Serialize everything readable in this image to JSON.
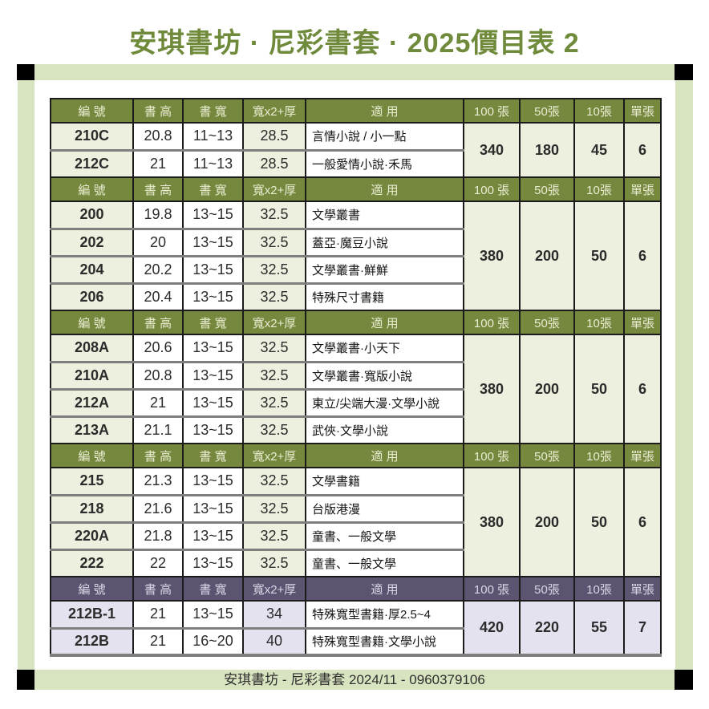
{
  "title": "安琪書坊 · 尼彩書套 · 2025價目表 2",
  "footer": "安琪書坊 - 尼彩書套 2024/11 - 0960379106",
  "columns": [
    "編 號",
    "書 高",
    "書 寬",
    "寬x2+厚",
    "適 用",
    "100 張",
    "50張",
    "10張",
    "單張"
  ],
  "colors": {
    "title_green": "#6e8a3a",
    "olive": "#75883d",
    "olive_text": "#e9ecd2",
    "purple": "#5d5471",
    "purple_text": "#d9d5e4",
    "tint_green": "#edf0de",
    "tint_purple": "#e5e2ef",
    "frame_green": "#d8e3c0",
    "line_black": "#1b1b1b",
    "line_gray": "#7f7f7f",
    "price_red": "#ec0000",
    "price_blue": "#1873c8",
    "price_black": "#0d0d0d"
  },
  "sections": [
    {
      "theme": "olive",
      "rows": [
        {
          "code": "210C",
          "height": "20.8",
          "width": "11~13",
          "w2t": "28.5",
          "use": "言情小說 / 小一點"
        },
        {
          "code": "212C",
          "height": "21",
          "width": "11~13",
          "w2t": "28.5",
          "use": "一般愛情小說·禾馬"
        }
      ],
      "prices": {
        "p100": "340",
        "p50": "180",
        "p10": "45",
        "p1": "6"
      }
    },
    {
      "theme": "olive",
      "rows": [
        {
          "code": "200",
          "height": "19.8",
          "width": "13~15",
          "w2t": "32.5",
          "use": "文學叢書"
        },
        {
          "code": "202",
          "height": "20",
          "width": "13~15",
          "w2t": "32.5",
          "use": "蓋亞·魔豆小說"
        },
        {
          "code": "204",
          "height": "20.2",
          "width": "13~15",
          "w2t": "32.5",
          "use": "文學叢書·鮮鮮"
        },
        {
          "code": "206",
          "height": "20.4",
          "width": "13~15",
          "w2t": "32.5",
          "use": "特殊尺寸書籍"
        }
      ],
      "prices": {
        "p100": "380",
        "p50": "200",
        "p10": "50",
        "p1": "6"
      }
    },
    {
      "theme": "olive",
      "rows": [
        {
          "code": "208A",
          "height": "20.6",
          "width": "13~15",
          "w2t": "32.5",
          "use": "文學叢書·小天下"
        },
        {
          "code": "210A",
          "height": "20.8",
          "width": "13~15",
          "w2t": "32.5",
          "use": "文學叢書·寬版小說"
        },
        {
          "code": "212A",
          "height": "21",
          "width": "13~15",
          "w2t": "32.5",
          "use": "東立/尖端大漫·文學小說"
        },
        {
          "code": "213A",
          "height": "21.1",
          "width": "13~15",
          "w2t": "32.5",
          "use": "武俠·文學小說"
        }
      ],
      "prices": {
        "p100": "380",
        "p50": "200",
        "p10": "50",
        "p1": "6"
      }
    },
    {
      "theme": "olive",
      "rows": [
        {
          "code": "215",
          "height": "21.3",
          "width": "13~15",
          "w2t": "32.5",
          "use": "文學書籍"
        },
        {
          "code": "218",
          "height": "21.6",
          "width": "13~15",
          "w2t": "32.5",
          "use": "台版港漫"
        },
        {
          "code": "220A",
          "height": "21.8",
          "width": "13~15",
          "w2t": "32.5",
          "use": "童書、一般文學"
        },
        {
          "code": "222",
          "height": "22",
          "width": "13~15",
          "w2t": "32.5",
          "use": "童書、一般文學"
        }
      ],
      "prices": {
        "p100": "380",
        "p50": "200",
        "p10": "50",
        "p1": "6"
      }
    },
    {
      "theme": "purple",
      "rows": [
        {
          "code": "212B-1",
          "height": "21",
          "width": "13~15",
          "w2t": "34",
          "use": "特殊寬型書籍·厚2.5~4"
        },
        {
          "code": "212B",
          "height": "21",
          "width": "16~20",
          "w2t": "40",
          "use": "特殊寬型書籍·文學小說"
        }
      ],
      "prices": {
        "p100": "420",
        "p50": "220",
        "p10": "55",
        "p1": "7"
      }
    }
  ]
}
